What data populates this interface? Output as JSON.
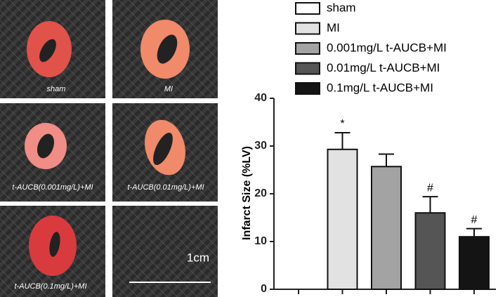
{
  "images": {
    "labels": [
      "sham",
      "MI",
      "t-AUCB(0.001mg/L)+MI",
      "t-AUCB(0.01mg/L)+MI",
      "t-AUCB(0.1mg/L)+MI"
    ],
    "scale_bar": "1cm"
  },
  "chart_data": {
    "type": "bar",
    "y_label": "Infarct Size (%LV)",
    "categories": [
      "sham",
      "MI",
      "0.001mg/L t-AUCB+MI",
      "0.01mg/L t-AUCB+MI",
      "0.1mg/L t-AUCB+MI"
    ],
    "values": [
      0,
      29.3,
      25.7,
      16.0,
      11.0
    ],
    "errors": [
      0,
      3.5,
      2.6,
      3.4,
      1.7
    ],
    "colors": [
      "#ffffff",
      "#e2e2e2",
      "#a3a3a3",
      "#555555",
      "#141414"
    ],
    "annotations": [
      null,
      "*",
      null,
      "#",
      "#"
    ],
    "ylim": [
      0,
      40
    ],
    "yticks": [
      0,
      10,
      20,
      30,
      40
    ]
  }
}
